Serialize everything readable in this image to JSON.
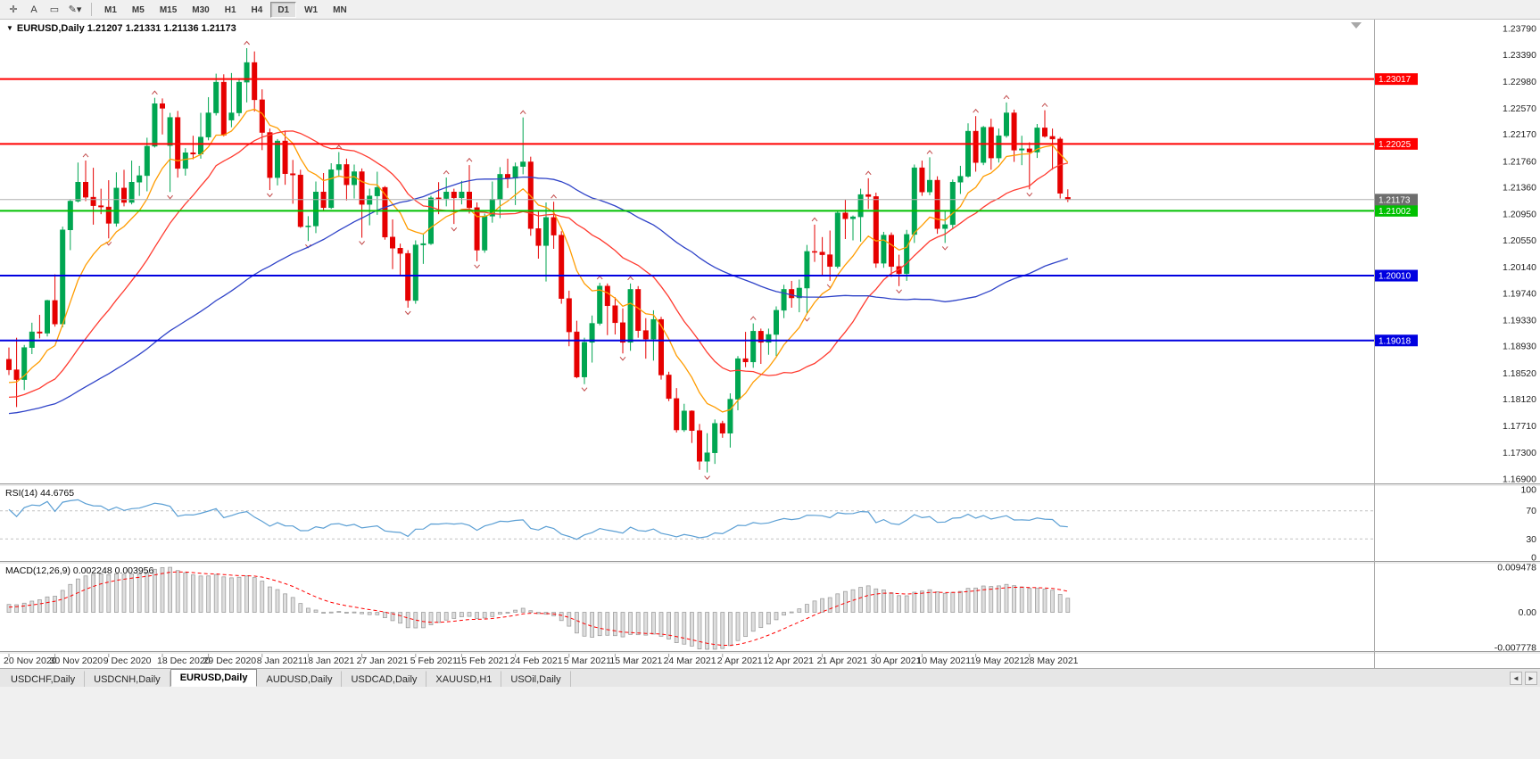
{
  "toolbar": {
    "tools": [
      {
        "name": "crosshair-icon",
        "glyph": "✛"
      },
      {
        "name": "text-label-tool-icon",
        "glyph": "A"
      },
      {
        "name": "shape-tool-icon",
        "glyph": "▭"
      },
      {
        "name": "draw-tools-icon",
        "glyph": "✎▾"
      }
    ],
    "timeframes": [
      {
        "label": "M1",
        "active": false
      },
      {
        "label": "M5",
        "active": false
      },
      {
        "label": "M15",
        "active": false
      },
      {
        "label": "M30",
        "active": false
      },
      {
        "label": "H1",
        "active": false
      },
      {
        "label": "H4",
        "active": false
      },
      {
        "label": "D1",
        "active": true
      },
      {
        "label": "W1",
        "active": false
      },
      {
        "label": "MN",
        "active": false
      }
    ]
  },
  "chart": {
    "collapse_glyph": "▼",
    "title": "EURUSD,Daily",
    "ohlc_line": "1.21207 1.21331 1.21136 1.21173"
  },
  "chart_data": {
    "type": "candlestick",
    "symbol": "EURUSD",
    "period": "Daily",
    "current": {
      "open": 1.21207,
      "high": 1.21331,
      "low": 1.21136,
      "close": 1.21173
    },
    "colors": {
      "bull": "#00a651",
      "bear": "#e60000",
      "background": "#ffffff",
      "axis_text": "#1f1f1f",
      "fractal": "#c24a4a"
    },
    "y_axis_labels": [
      "1.23790",
      "1.23390",
      "1.22980",
      "1.22570",
      "1.22170",
      "1.21760",
      "1.21360",
      "1.20950",
      "1.20550",
      "1.20140",
      "1.19740",
      "1.19330",
      "1.18930",
      "1.18520",
      "1.18120",
      "1.17710",
      "1.17300",
      "1.16900"
    ],
    "x_ticks": [
      {
        "i": 0,
        "label": "20 Nov 2020"
      },
      {
        "i": 6,
        "label": "30 Nov 2020"
      },
      {
        "i": 13,
        "label": "9 Dec 2020"
      },
      {
        "i": 20,
        "label": "18 Dec 2020"
      },
      {
        "i": 26,
        "label": "29 Dec 2020"
      },
      {
        "i": 33,
        "label": "8 Jan 2021"
      },
      {
        "i": 39,
        "label": "18 Jan 2021"
      },
      {
        "i": 46,
        "label": "27 Jan 2021"
      },
      {
        "i": 53,
        "label": "5 Feb 2021"
      },
      {
        "i": 59,
        "label": "15 Feb 2021"
      },
      {
        "i": 66,
        "label": "24 Feb 2021"
      },
      {
        "i": 73,
        "label": "5 Mar 2021"
      },
      {
        "i": 79,
        "label": "15 Mar 2021"
      },
      {
        "i": 86,
        "label": "24 Mar 2021"
      },
      {
        "i": 93,
        "label": "2 Apr 2021"
      },
      {
        "i": 99,
        "label": "12 Apr 2021"
      },
      {
        "i": 106,
        "label": "21 Apr 2021"
      },
      {
        "i": 113,
        "label": "30 Apr 2021"
      },
      {
        "i": 119,
        "label": "10 May 2021"
      },
      {
        "i": 126,
        "label": "19 May 2021"
      },
      {
        "i": 133,
        "label": "28 May 2021"
      }
    ],
    "candles": [
      [
        1.1873,
        1.1891,
        1.1849,
        1.1857
      ],
      [
        1.1857,
        1.1906,
        1.18,
        1.1842
      ],
      [
        1.1842,
        1.1895,
        1.1826,
        1.1891
      ],
      [
        1.1891,
        1.1929,
        1.1881,
        1.1915
      ],
      [
        1.1915,
        1.1941,
        1.1905,
        1.1913
      ],
      [
        1.1913,
        1.1964,
        1.1908,
        1.1963
      ],
      [
        1.1963,
        1.2003,
        1.1923,
        1.1927
      ],
      [
        1.1927,
        1.2076,
        1.1922,
        1.2071
      ],
      [
        1.2071,
        1.2118,
        1.204,
        1.2115
      ],
      [
        1.2115,
        1.2174,
        1.2113,
        1.2144
      ],
      [
        1.2144,
        1.2177,
        1.2115,
        1.2121
      ],
      [
        1.2121,
        1.2166,
        1.2079,
        1.2108
      ],
      [
        1.2108,
        1.2134,
        1.2095,
        1.2106
      ],
      [
        1.2106,
        1.2147,
        1.2058,
        1.2081
      ],
      [
        1.2081,
        1.2159,
        1.2076,
        1.2135
      ],
      [
        1.2135,
        1.2163,
        1.2107,
        1.2113
      ],
      [
        1.2113,
        1.2177,
        1.211,
        1.2144
      ],
      [
        1.2144,
        1.2169,
        1.2123,
        1.2154
      ],
      [
        1.2154,
        1.2212,
        1.213,
        1.2199
      ],
      [
        1.2199,
        1.2273,
        1.2197,
        1.2264
      ],
      [
        1.2264,
        1.2272,
        1.2217,
        1.2257
      ],
      [
        1.22,
        1.225,
        1.2129,
        1.2243
      ],
      [
        1.2243,
        1.2253,
        1.2151,
        1.2165
      ],
      [
        1.2165,
        1.2196,
        1.2154,
        1.2189
      ],
      [
        1.2189,
        1.2215,
        1.2179,
        1.2187
      ],
      [
        1.2187,
        1.225,
        1.218,
        1.2213
      ],
      [
        1.2213,
        1.2274,
        1.2208,
        1.225
      ],
      [
        1.225,
        1.231,
        1.2246,
        1.2297
      ],
      [
        1.2297,
        1.2309,
        1.2214,
        1.2216
      ],
      [
        1.2239,
        1.2311,
        1.2228,
        1.225
      ],
      [
        1.225,
        1.2303,
        1.2245,
        1.2297
      ],
      [
        1.2297,
        1.2349,
        1.2266,
        1.2327
      ],
      [
        1.2327,
        1.2344,
        1.2252,
        1.227
      ],
      [
        1.227,
        1.2286,
        1.2193,
        1.222
      ],
      [
        1.222,
        1.2226,
        1.2132,
        1.2151
      ],
      [
        1.2151,
        1.221,
        1.2139,
        1.2207
      ],
      [
        1.2207,
        1.2223,
        1.214,
        1.2157
      ],
      [
        1.2157,
        1.2178,
        1.2111,
        1.2155
      ],
      [
        1.2155,
        1.2163,
        1.2074,
        1.2076
      ],
      [
        1.2076,
        1.2092,
        1.2054,
        1.2077
      ],
      [
        1.2077,
        1.2145,
        1.2066,
        1.2129
      ],
      [
        1.2129,
        1.2158,
        1.21,
        1.2105
      ],
      [
        1.2105,
        1.2173,
        1.2103,
        1.2163
      ],
      [
        1.2163,
        1.219,
        1.2152,
        1.2171
      ],
      [
        1.2171,
        1.218,
        1.2116,
        1.214
      ],
      [
        1.214,
        1.2171,
        1.2119,
        1.216
      ],
      [
        1.216,
        1.2165,
        1.2059,
        1.211
      ],
      [
        1.211,
        1.2134,
        1.2078,
        1.2123
      ],
      [
        1.2123,
        1.216,
        1.2094,
        1.2136
      ],
      [
        1.2136,
        1.2138,
        1.2056,
        1.206
      ],
      [
        1.206,
        1.2087,
        1.2011,
        1.2043
      ],
      [
        1.2043,
        1.205,
        1.2002,
        1.2035
      ],
      [
        1.2035,
        1.204,
        1.1952,
        1.1963
      ],
      [
        1.1963,
        1.2055,
        1.1958,
        1.2048
      ],
      [
        1.2048,
        1.2064,
        1.2019,
        1.205
      ],
      [
        1.205,
        1.2123,
        1.2048,
        1.212
      ],
      [
        1.212,
        1.2144,
        1.2095,
        1.2119
      ],
      [
        1.2119,
        1.2151,
        1.2107,
        1.2129
      ],
      [
        1.2129,
        1.2134,
        1.208,
        1.212
      ],
      [
        1.212,
        1.2146,
        1.211,
        1.2129
      ],
      [
        1.2129,
        1.217,
        1.2096,
        1.2105
      ],
      [
        1.2105,
        1.2113,
        1.2023,
        1.204
      ],
      [
        1.204,
        1.2096,
        1.2036,
        1.2092
      ],
      [
        1.2092,
        1.2145,
        1.2082,
        1.2118
      ],
      [
        1.2118,
        1.2167,
        1.2089,
        1.2156
      ],
      [
        1.2156,
        1.218,
        1.2135,
        1.215
      ],
      [
        1.215,
        1.2174,
        1.2109,
        1.2168
      ],
      [
        1.2168,
        1.2243,
        1.2156,
        1.2175
      ],
      [
        1.2175,
        1.2183,
        1.2062,
        1.2073
      ],
      [
        1.2073,
        1.2101,
        1.2027,
        1.2047
      ],
      [
        1.2047,
        1.2113,
        1.1992,
        1.209
      ],
      [
        1.209,
        1.2114,
        1.2042,
        1.2063
      ],
      [
        1.2063,
        1.2069,
        1.1958,
        1.1966
      ],
      [
        1.1966,
        1.1978,
        1.1893,
        1.1915
      ],
      [
        1.1915,
        1.1932,
        1.1844,
        1.1846
      ],
      [
        1.1846,
        1.1906,
        1.1835,
        1.1899
      ],
      [
        1.1899,
        1.194,
        1.1868,
        1.1928
      ],
      [
        1.1928,
        1.199,
        1.1925,
        1.1985
      ],
      [
        1.1985,
        1.1989,
        1.191,
        1.1955
      ],
      [
        1.1955,
        1.1968,
        1.1911,
        1.1929
      ],
      [
        1.1929,
        1.1951,
        1.1882,
        1.1899
      ],
      [
        1.1899,
        1.1989,
        1.1886,
        1.198
      ],
      [
        1.198,
        1.1985,
        1.1906,
        1.1917
      ],
      [
        1.1917,
        1.1936,
        1.1874,
        1.1904
      ],
      [
        1.1904,
        1.1948,
        1.1871,
        1.1934
      ],
      [
        1.1934,
        1.1938,
        1.1842,
        1.1849
      ],
      [
        1.1849,
        1.1854,
        1.1809,
        1.1813
      ],
      [
        1.1813,
        1.1829,
        1.1761,
        1.1765
      ],
      [
        1.1765,
        1.1805,
        1.1762,
        1.1794
      ],
      [
        1.1794,
        1.1795,
        1.1745,
        1.1764
      ],
      [
        1.1764,
        1.1774,
        1.1704,
        1.1717
      ],
      [
        1.1717,
        1.176,
        1.17,
        1.173
      ],
      [
        1.173,
        1.1781,
        1.1713,
        1.1775
      ],
      [
        1.1775,
        1.1779,
        1.1753,
        1.176
      ],
      [
        1.176,
        1.1821,
        1.1738,
        1.1812
      ],
      [
        1.1812,
        1.1878,
        1.1795,
        1.1874
      ],
      [
        1.1874,
        1.1915,
        1.1861,
        1.1869
      ],
      [
        1.1869,
        1.1928,
        1.186,
        1.1916
      ],
      [
        1.1916,
        1.192,
        1.1866,
        1.1899
      ],
      [
        1.1899,
        1.192,
        1.188,
        1.1911
      ],
      [
        1.1911,
        1.1954,
        1.1878,
        1.1948
      ],
      [
        1.1948,
        1.1987,
        1.1936,
        1.198
      ],
      [
        1.198,
        1.1993,
        1.1952,
        1.1967
      ],
      [
        1.1967,
        1.1995,
        1.1945,
        1.1982
      ],
      [
        1.1982,
        1.2048,
        1.1942,
        1.2038
      ],
      [
        1.2038,
        1.2079,
        1.2022,
        1.2037
      ],
      [
        1.2037,
        1.206,
        1.2001,
        1.2033
      ],
      [
        1.2033,
        1.207,
        1.1993,
        1.2015
      ],
      [
        1.2015,
        1.21,
        1.2012,
        1.2097
      ],
      [
        1.2097,
        1.2117,
        1.2057,
        1.2088
      ],
      [
        1.2088,
        1.2093,
        1.2055,
        1.2091
      ],
      [
        1.2091,
        1.2134,
        1.2053,
        1.2125
      ],
      [
        1.2125,
        1.215,
        1.2103,
        1.2122
      ],
      [
        1.2122,
        1.2128,
        1.2013,
        1.202
      ],
      [
        1.202,
        1.2068,
        1.2013,
        1.2063
      ],
      [
        1.2063,
        1.2067,
        1.1999,
        1.2015
      ],
      [
        1.2015,
        1.2033,
        1.1985,
        1.2004
      ],
      [
        1.2004,
        1.2071,
        1.1993,
        1.2064
      ],
      [
        1.2064,
        1.2171,
        1.2051,
        1.2166
      ],
      [
        1.2166,
        1.2177,
        1.2123,
        1.2129
      ],
      [
        1.2129,
        1.2182,
        1.2124,
        1.2147
      ],
      [
        1.2147,
        1.2153,
        1.2065,
        1.2073
      ],
      [
        1.2073,
        1.21,
        1.2051,
        1.2079
      ],
      [
        1.2079,
        1.2148,
        1.2072,
        1.2144
      ],
      [
        1.2144,
        1.2169,
        1.2126,
        1.2153
      ],
      [
        1.2153,
        1.2234,
        1.2151,
        1.2222
      ],
      [
        1.2222,
        1.2245,
        1.216,
        1.2174
      ],
      [
        1.2174,
        1.223,
        1.217,
        1.2228
      ],
      [
        1.2228,
        1.2241,
        1.2163,
        1.2181
      ],
      [
        1.2181,
        1.2226,
        1.2174,
        1.2215
      ],
      [
        1.2215,
        1.2266,
        1.2212,
        1.225
      ],
      [
        1.225,
        1.2255,
        1.2175,
        1.2193
      ],
      [
        1.2193,
        1.2215,
        1.217,
        1.2195
      ],
      [
        1.2195,
        1.2205,
        1.2133,
        1.219
      ],
      [
        1.219,
        1.2233,
        1.2181,
        1.2227
      ],
      [
        1.2227,
        1.2254,
        1.2212,
        1.2214
      ],
      [
        1.2214,
        1.2226,
        1.2163,
        1.221
      ],
      [
        1.221,
        1.2213,
        1.2119,
        1.2127
      ],
      [
        1.21207,
        1.21331,
        1.21136,
        1.21173
      ]
    ],
    "h_lines": [
      {
        "price": 1.23017,
        "label": "1.23017",
        "color": "#ff0000",
        "width": 2
      },
      {
        "price": 1.22025,
        "label": "1.22025",
        "color": "#ff0000",
        "width": 2
      },
      {
        "price": 1.21002,
        "label": "1.21002",
        "color": "#00c000",
        "width": 2
      },
      {
        "price": 1.2001,
        "label": "1.20010",
        "color": "#0000e0",
        "width": 2
      },
      {
        "price": 1.19018,
        "label": "1.19018",
        "color": "#0000e0",
        "width": 2
      }
    ],
    "price_line": {
      "price": 1.21173,
      "label": "1.21173",
      "color": "#6e6e6e"
    },
    "moving_averages": [
      {
        "period": 10,
        "method": "ema",
        "color": "#ff9c00"
      },
      {
        "period": 21,
        "method": "sma",
        "color": "#ff3b30"
      },
      {
        "period": 55,
        "method": "sma",
        "color": "#2f43c8"
      }
    ],
    "rsi": {
      "display": "RSI(14) 44.6765",
      "period": 14,
      "value": 44.6765,
      "color": "#5b9fd4",
      "levels": [
        70,
        30
      ],
      "scale": [
        "100",
        "70",
        "30",
        "0"
      ]
    },
    "macd": {
      "display": "MACD(12,26,9) 0.002248 0.003956",
      "fast": 12,
      "slow": 26,
      "signal": 9,
      "value": 0.002248,
      "signal_value": 0.003956,
      "hist_color": "#dedede",
      "hist_border": "#9a9a9a",
      "signal_color": "#ff0000",
      "scale": [
        "0.009478",
        "0.00",
        "-0.007778"
      ]
    }
  },
  "tabs": {
    "items": [
      {
        "label": "USDCHF,Daily",
        "active": false
      },
      {
        "label": "USDCNH,Daily",
        "active": false
      },
      {
        "label": "EURUSD,Daily",
        "active": true
      },
      {
        "label": "AUDUSD,Daily",
        "active": false
      },
      {
        "label": "USDCAD,Daily",
        "active": false
      },
      {
        "label": "XAUUSD,H1",
        "active": false
      },
      {
        "label": "USOil,Daily",
        "active": false
      }
    ],
    "scroll_left": "◄",
    "scroll_right": "►"
  }
}
